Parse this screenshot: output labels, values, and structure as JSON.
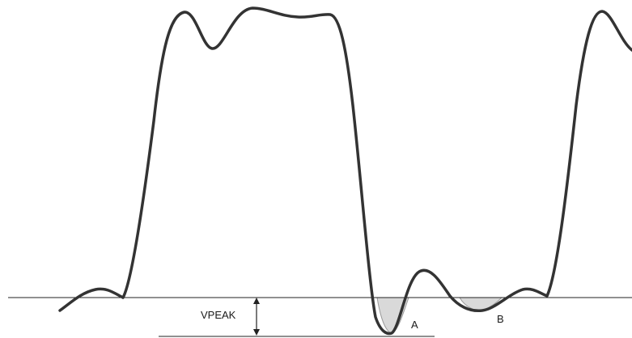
{
  "labels": {
    "vpeak": "VPEAK",
    "region_a": "A",
    "region_b": "B"
  },
  "colors": {
    "waveform": "#333333",
    "baseline": "#222222",
    "shaded_region": "#d9d9d9"
  }
}
